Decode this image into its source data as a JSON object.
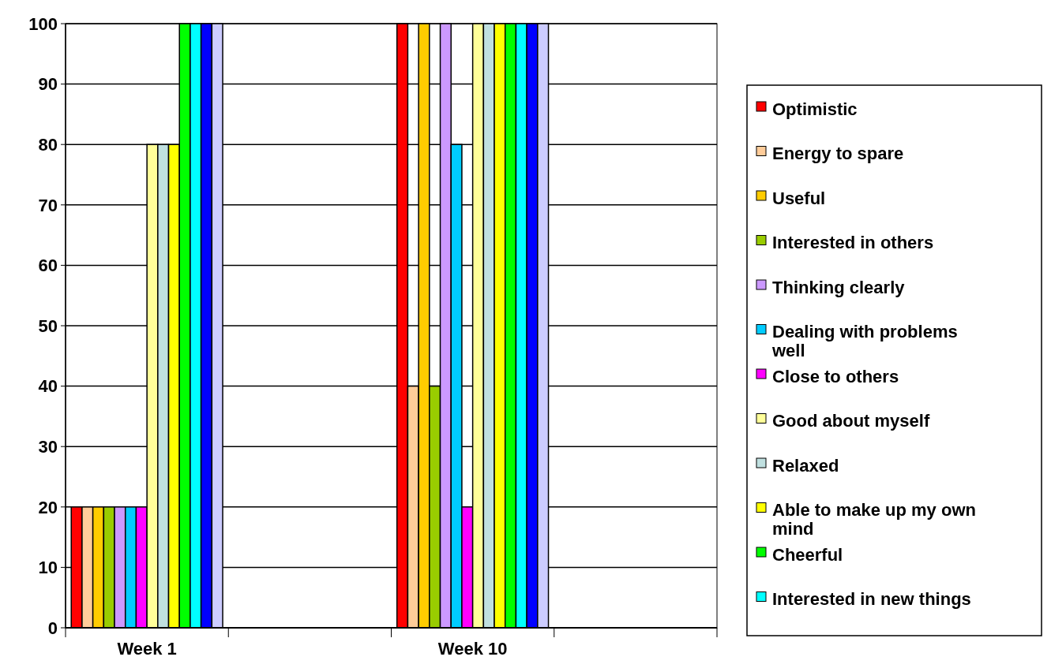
{
  "chart_data": {
    "type": "bar",
    "categories": [
      "Week 1",
      null,
      "Week 10",
      null
    ],
    "ylim": [
      0,
      100
    ],
    "yticks": [
      0,
      10,
      20,
      30,
      40,
      50,
      60,
      70,
      80,
      90,
      100
    ],
    "grid": "y",
    "legend": "right",
    "series": [
      {
        "name": "Optimistic",
        "color": "#ff0000",
        "values": [
          20,
          0,
          100,
          0
        ]
      },
      {
        "name": "Energy to spare",
        "color": "#ffcc99",
        "values": [
          20,
          0,
          40,
          0
        ]
      },
      {
        "name": "Useful",
        "color": "#ffcc00",
        "values": [
          20,
          0,
          100,
          0
        ]
      },
      {
        "name": "Interested in others",
        "color": "#99cc00",
        "values": [
          20,
          0,
          40,
          0
        ]
      },
      {
        "name": "Thinking clearly",
        "color": "#cc99ff",
        "values": [
          20,
          0,
          100,
          0
        ]
      },
      {
        "name": "Dealing with problems well",
        "color": "#00ccff",
        "values": [
          20,
          0,
          80,
          0
        ]
      },
      {
        "name": "Close to others",
        "color": "#ff00ff",
        "values": [
          20,
          0,
          20,
          0
        ]
      },
      {
        "name": "Good about myself",
        "color": "#ffff99",
        "values": [
          80,
          0,
          100,
          0
        ]
      },
      {
        "name": "Relaxed",
        "color": "#c0e0e0",
        "values": [
          80,
          0,
          100,
          0
        ]
      },
      {
        "name": "Able to make up my own mind",
        "color": "#ffff00",
        "values": [
          80,
          0,
          100,
          0
        ]
      },
      {
        "name": "Cheerful",
        "color": "#00ff00",
        "values": [
          100,
          0,
          100,
          0
        ]
      },
      {
        "name": "Interested in new things",
        "color": "#00ffff",
        "values": [
          100,
          0,
          100,
          0
        ]
      },
      {
        "color": "#0000ff",
        "values": [
          100,
          0,
          100,
          0
        ]
      },
      {
        "color": "#ccccff",
        "values": [
          100,
          0,
          100,
          0
        ]
      }
    ]
  }
}
